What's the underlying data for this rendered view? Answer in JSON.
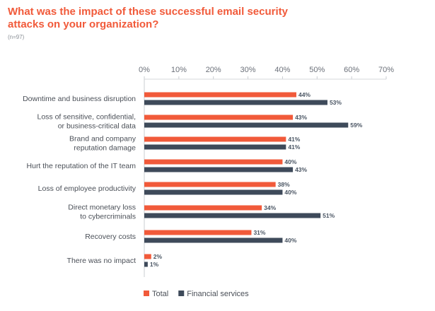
{
  "chart_data": {
    "type": "bar",
    "orientation": "horizontal",
    "title": "What was the impact of these successful email security attacks on your organization?",
    "subtitle": "(n=97)",
    "categories": [
      [
        "Downtime and business disruption"
      ],
      [
        "Loss of sensitive, confidential,",
        "or business-critical data"
      ],
      [
        "Brand and company",
        "reputation damage"
      ],
      [
        "Hurt the reputation of the IT team"
      ],
      [
        "Loss of employee productivity"
      ],
      [
        "Direct monetary loss",
        "to cybercriminals"
      ],
      [
        "Recovery costs"
      ],
      [
        "There was no impact"
      ]
    ],
    "series": [
      {
        "name": "Total",
        "color": "#f15a3a",
        "values": [
          44,
          43,
          41,
          40,
          38,
          34,
          31,
          2
        ]
      },
      {
        "name": "Financial services",
        "color": "#3e4a5a",
        "values": [
          53,
          59,
          41,
          43,
          40,
          51,
          40,
          1
        ]
      }
    ],
    "xlim": [
      0,
      70
    ],
    "xticks": [
      "0%",
      "10%",
      "20%",
      "30%",
      "40%",
      "50%",
      "60%",
      "70%"
    ],
    "value_suffix": "%",
    "legend": "bottom",
    "grid": false
  }
}
